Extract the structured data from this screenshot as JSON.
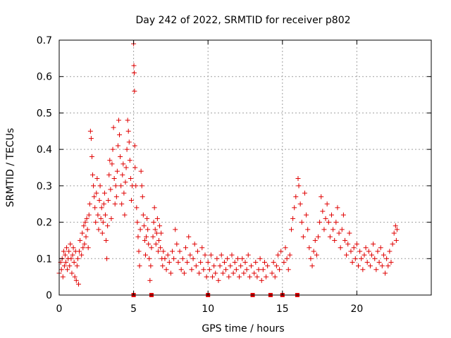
{
  "chart_data": {
    "type": "scatter",
    "title": "Day 242 of 2022, SRMTID for receiver p802",
    "xlabel": "GPS time / hours",
    "ylabel": "SRMTID / TECUs",
    "xlim": [
      0,
      25
    ],
    "ylim": [
      0,
      0.7
    ],
    "xticks": [
      0,
      5,
      10,
      15,
      20
    ],
    "yticks": [
      0,
      0.1,
      0.2,
      0.3,
      0.4,
      0.5,
      0.6,
      0.7
    ],
    "xtick_labels": [
      "0",
      "5",
      "10",
      "15",
      "20"
    ],
    "ytick_labels": [
      "0",
      "0.1",
      "0.2",
      "0.3",
      "0.4",
      "0.5",
      "0.6",
      "0.7"
    ],
    "grid": true,
    "marker": "+",
    "color": "#e00000",
    "gap_markers_x": [
      5.0,
      6.2,
      10.0,
      13.0,
      14.2,
      15.0,
      16.0
    ],
    "series": [
      {
        "name": "SRMTID",
        "points": [
          [
            0.0,
            0.06
          ],
          [
            0.1,
            0.09
          ],
          [
            0.15,
            0.07
          ],
          [
            0.2,
            0.1
          ],
          [
            0.25,
            0.05
          ],
          [
            0.3,
            0.12
          ],
          [
            0.35,
            0.08
          ],
          [
            0.4,
            0.11
          ],
          [
            0.45,
            0.09
          ],
          [
            0.5,
            0.13
          ],
          [
            0.55,
            0.07
          ],
          [
            0.6,
            0.1
          ],
          [
            0.65,
            0.12
          ],
          [
            0.7,
            0.08
          ],
          [
            0.75,
            0.14
          ],
          [
            0.8,
            0.1
          ],
          [
            0.85,
            0.06
          ],
          [
            0.9,
            0.11
          ],
          [
            0.95,
            0.13
          ],
          [
            1.0,
            0.09
          ],
          [
            1.05,
            0.05
          ],
          [
            1.1,
            0.12
          ],
          [
            1.15,
            0.04
          ],
          [
            1.2,
            0.08
          ],
          [
            1.25,
            0.1
          ],
          [
            1.3,
            0.03
          ],
          [
            1.35,
            0.12
          ],
          [
            1.4,
            0.15
          ],
          [
            1.5,
            0.11
          ],
          [
            1.55,
            0.17
          ],
          [
            1.6,
            0.13
          ],
          [
            1.65,
            0.19
          ],
          [
            1.7,
            0.14
          ],
          [
            1.75,
            0.2
          ],
          [
            1.8,
            0.16
          ],
          [
            1.85,
            0.21
          ],
          [
            1.9,
            0.18
          ],
          [
            1.95,
            0.13
          ],
          [
            2.0,
            0.22
          ],
          [
            2.05,
            0.25
          ],
          [
            2.1,
            0.45
          ],
          [
            2.15,
            0.43
          ],
          [
            2.2,
            0.38
          ],
          [
            2.25,
            0.33
          ],
          [
            2.3,
            0.3
          ],
          [
            2.35,
            0.27
          ],
          [
            2.4,
            0.24
          ],
          [
            2.45,
            0.2
          ],
          [
            2.5,
            0.28
          ],
          [
            2.55,
            0.32
          ],
          [
            2.6,
            0.22
          ],
          [
            2.65,
            0.18
          ],
          [
            2.7,
            0.26
          ],
          [
            2.75,
            0.3
          ],
          [
            2.8,
            0.21
          ],
          [
            2.85,
            0.24
          ],
          [
            2.9,
            0.17
          ],
          [
            2.95,
            0.2
          ],
          [
            3.0,
            0.25
          ],
          [
            3.05,
            0.28
          ],
          [
            3.1,
            0.22
          ],
          [
            3.15,
            0.15
          ],
          [
            3.2,
            0.1
          ],
          [
            3.25,
            0.19
          ],
          [
            3.3,
            0.26
          ],
          [
            3.35,
            0.33
          ],
          [
            3.4,
            0.37
          ],
          [
            3.45,
            0.29
          ],
          [
            3.5,
            0.21
          ],
          [
            3.55,
            0.36
          ],
          [
            3.6,
            0.4
          ],
          [
            3.65,
            0.46
          ],
          [
            3.7,
            0.32
          ],
          [
            3.75,
            0.25
          ],
          [
            3.8,
            0.3
          ],
          [
            3.85,
            0.27
          ],
          [
            3.9,
            0.34
          ],
          [
            3.95,
            0.41
          ],
          [
            4.0,
            0.48
          ],
          [
            4.05,
            0.44
          ],
          [
            4.1,
            0.38
          ],
          [
            4.15,
            0.3
          ],
          [
            4.2,
            0.25
          ],
          [
            4.25,
            0.33
          ],
          [
            4.3,
            0.36
          ],
          [
            4.35,
            0.28
          ],
          [
            4.4,
            0.22
          ],
          [
            4.45,
            0.31
          ],
          [
            4.5,
            0.35
          ],
          [
            4.55,
            0.4
          ],
          [
            4.6,
            0.48
          ],
          [
            4.65,
            0.45
          ],
          [
            4.7,
            0.42
          ],
          [
            4.75,
            0.37
          ],
          [
            4.8,
            0.32
          ],
          [
            4.85,
            0.26
          ],
          [
            4.9,
            0.3
          ],
          [
            5.0,
            0.69
          ],
          [
            5.02,
            0.63
          ],
          [
            5.04,
            0.61
          ],
          [
            5.06,
            0.56
          ],
          [
            5.08,
            0.41
          ],
          [
            5.1,
            0.35
          ],
          [
            5.15,
            0.3
          ],
          [
            5.2,
            0.24
          ],
          [
            5.25,
            0.2
          ],
          [
            5.3,
            0.16
          ],
          [
            5.35,
            0.12
          ],
          [
            5.4,
            0.08
          ],
          [
            5.45,
            0.18
          ],
          [
            5.5,
            0.34
          ],
          [
            5.55,
            0.3
          ],
          [
            5.6,
            0.27
          ],
          [
            5.65,
            0.22
          ],
          [
            5.7,
            0.19
          ],
          [
            5.75,
            0.15
          ],
          [
            5.8,
            0.11
          ],
          [
            5.85,
            0.16
          ],
          [
            5.9,
            0.21
          ],
          [
            5.95,
            0.18
          ],
          [
            6.0,
            0.14
          ],
          [
            6.05,
            0.1
          ],
          [
            6.1,
            0.04
          ],
          [
            6.15,
            0.08
          ],
          [
            6.2,
            0.13
          ],
          [
            6.3,
            0.16
          ],
          [
            6.35,
            0.2
          ],
          [
            6.4,
            0.24
          ],
          [
            6.45,
            0.18
          ],
          [
            6.5,
            0.14
          ],
          [
            6.55,
            0.17
          ],
          [
            6.6,
            0.21
          ],
          [
            6.65,
            0.12
          ],
          [
            6.7,
            0.15
          ],
          [
            6.75,
            0.19
          ],
          [
            6.8,
            0.13
          ],
          [
            6.85,
            0.17
          ],
          [
            6.9,
            0.1
          ],
          [
            6.95,
            0.08
          ],
          [
            7.0,
            0.12
          ],
          [
            7.1,
            0.1
          ],
          [
            7.2,
            0.07
          ],
          [
            7.3,
            0.11
          ],
          [
            7.4,
            0.09
          ],
          [
            7.5,
            0.06
          ],
          [
            7.6,
            0.12
          ],
          [
            7.7,
            0.1
          ],
          [
            7.8,
            0.18
          ],
          [
            7.9,
            0.14
          ],
          [
            8.0,
            0.09
          ],
          [
            8.1,
            0.12
          ],
          [
            8.2,
            0.07
          ],
          [
            8.3,
            0.1
          ],
          [
            8.4,
            0.06
          ],
          [
            8.5,
            0.13
          ],
          [
            8.6,
            0.09
          ],
          [
            8.7,
            0.16
          ],
          [
            8.8,
            0.11
          ],
          [
            8.9,
            0.07
          ],
          [
            9.0,
            0.1
          ],
          [
            9.1,
            0.14
          ],
          [
            9.2,
            0.08
          ],
          [
            9.3,
            0.12
          ],
          [
            9.4,
            0.06
          ],
          [
            9.5,
            0.09
          ],
          [
            9.6,
            0.13
          ],
          [
            9.7,
            0.07
          ],
          [
            9.8,
            0.11
          ],
          [
            9.9,
            0.05
          ],
          [
            10.0,
            0.09
          ],
          [
            10.1,
            0.07
          ],
          [
            10.2,
            0.11
          ],
          [
            10.3,
            0.05
          ],
          [
            10.4,
            0.08
          ],
          [
            10.5,
            0.06
          ],
          [
            10.6,
            0.1
          ],
          [
            10.7,
            0.04
          ],
          [
            10.8,
            0.08
          ],
          [
            10.9,
            0.11
          ],
          [
            11.0,
            0.06
          ],
          [
            11.1,
            0.09
          ],
          [
            11.2,
            0.07
          ],
          [
            11.3,
            0.1
          ],
          [
            11.4,
            0.05
          ],
          [
            11.5,
            0.08
          ],
          [
            11.6,
            0.11
          ],
          [
            11.7,
            0.06
          ],
          [
            11.8,
            0.09
          ],
          [
            11.9,
            0.07
          ],
          [
            12.0,
            0.1
          ],
          [
            12.1,
            0.05
          ],
          [
            12.2,
            0.08
          ],
          [
            12.3,
            0.1
          ],
          [
            12.4,
            0.06
          ],
          [
            12.5,
            0.09
          ],
          [
            12.6,
            0.07
          ],
          [
            12.7,
            0.11
          ],
          [
            12.8,
            0.05
          ],
          [
            12.9,
            0.08
          ],
          [
            13.1,
            0.06
          ],
          [
            13.2,
            0.09
          ],
          [
            13.3,
            0.05
          ],
          [
            13.4,
            0.07
          ],
          [
            13.5,
            0.1
          ],
          [
            13.6,
            0.04
          ],
          [
            13.7,
            0.07
          ],
          [
            13.8,
            0.09
          ],
          [
            13.9,
            0.05
          ],
          [
            14.0,
            0.08
          ],
          [
            14.3,
            0.06
          ],
          [
            14.4,
            0.09
          ],
          [
            14.5,
            0.05
          ],
          [
            14.6,
            0.08
          ],
          [
            14.7,
            0.11
          ],
          [
            14.8,
            0.07
          ],
          [
            14.9,
            0.12
          ],
          [
            15.1,
            0.09
          ],
          [
            15.2,
            0.13
          ],
          [
            15.3,
            0.1
          ],
          [
            15.4,
            0.07
          ],
          [
            15.5,
            0.11
          ],
          [
            15.6,
            0.18
          ],
          [
            15.7,
            0.21
          ],
          [
            15.8,
            0.24
          ],
          [
            15.9,
            0.27
          ],
          [
            16.05,
            0.32
          ],
          [
            16.1,
            0.3
          ],
          [
            16.2,
            0.25
          ],
          [
            16.3,
            0.2
          ],
          [
            16.4,
            0.16
          ],
          [
            16.5,
            0.28
          ],
          [
            16.6,
            0.22
          ],
          [
            16.7,
            0.18
          ],
          [
            16.8,
            0.13
          ],
          [
            16.9,
            0.1
          ],
          [
            17.0,
            0.08
          ],
          [
            17.1,
            0.12
          ],
          [
            17.2,
            0.15
          ],
          [
            17.3,
            0.11
          ],
          [
            17.4,
            0.16
          ],
          [
            17.5,
            0.2
          ],
          [
            17.6,
            0.27
          ],
          [
            17.7,
            0.23
          ],
          [
            17.8,
            0.18
          ],
          [
            17.9,
            0.21
          ],
          [
            18.0,
            0.25
          ],
          [
            18.1,
            0.2
          ],
          [
            18.2,
            0.16
          ],
          [
            18.3,
            0.22
          ],
          [
            18.4,
            0.18
          ],
          [
            18.5,
            0.15
          ],
          [
            18.6,
            0.2
          ],
          [
            18.7,
            0.24
          ],
          [
            18.8,
            0.17
          ],
          [
            18.9,
            0.13
          ],
          [
            19.0,
            0.18
          ],
          [
            19.1,
            0.22
          ],
          [
            19.2,
            0.15
          ],
          [
            19.3,
            0.11
          ],
          [
            19.4,
            0.14
          ],
          [
            19.5,
            0.17
          ],
          [
            19.6,
            0.12
          ],
          [
            19.7,
            0.09
          ],
          [
            19.8,
            0.13
          ],
          [
            19.9,
            0.1
          ],
          [
            20.0,
            0.14
          ],
          [
            20.1,
            0.08
          ],
          [
            20.2,
            0.12
          ],
          [
            20.3,
            0.1
          ],
          [
            20.4,
            0.07
          ],
          [
            20.5,
            0.11
          ],
          [
            20.6,
            0.13
          ],
          [
            20.7,
            0.09
          ],
          [
            20.8,
            0.12
          ],
          [
            20.9,
            0.08
          ],
          [
            21.0,
            0.11
          ],
          [
            21.1,
            0.14
          ],
          [
            21.2,
            0.1
          ],
          [
            21.3,
            0.07
          ],
          [
            21.4,
            0.12
          ],
          [
            21.5,
            0.09
          ],
          [
            21.6,
            0.13
          ],
          [
            21.7,
            0.08
          ],
          [
            21.8,
            0.11
          ],
          [
            21.9,
            0.06
          ],
          [
            22.0,
            0.1
          ],
          [
            22.1,
            0.08
          ],
          [
            22.2,
            0.12
          ],
          [
            22.3,
            0.09
          ],
          [
            22.4,
            0.14
          ],
          [
            22.5,
            0.17
          ],
          [
            22.6,
            0.19
          ],
          [
            22.65,
            0.15
          ],
          [
            22.7,
            0.18
          ]
        ]
      }
    ]
  }
}
